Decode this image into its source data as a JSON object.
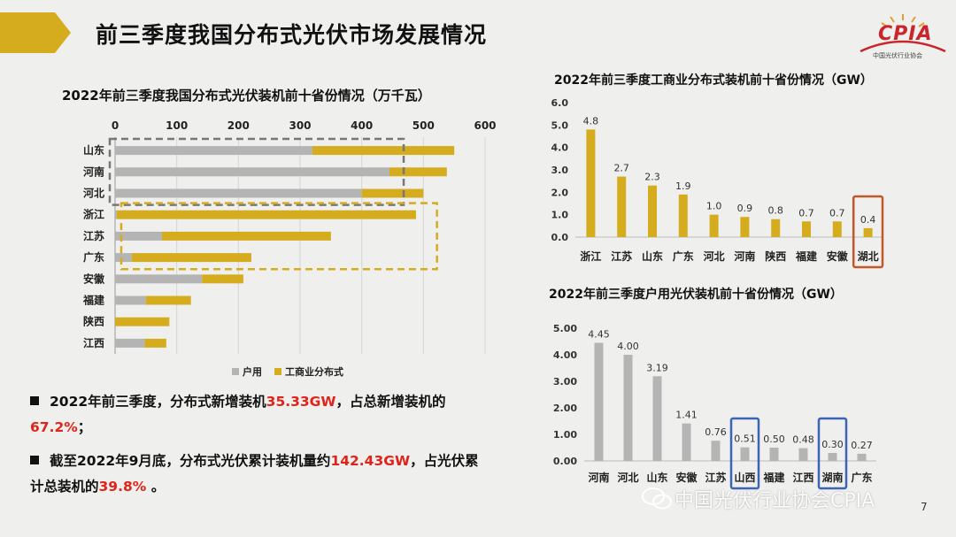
{
  "title": "前三季度我国分布式光伏市场发展情况",
  "logo": {
    "text": "CPIA",
    "subtitle": "中国光伏行业协会"
  },
  "colors": {
    "yellow": "#d6ac1f",
    "gray": "#b4b4b4",
    "red": "#e0241b",
    "blue": "#3a64b4",
    "orange": "#c0582a"
  },
  "chart_data": [
    {
      "type": "bar",
      "orientation": "horizontal",
      "stacked": true,
      "title": "2022年前三季度我国分布式光伏装机前十省份情况（万千瓦）",
      "categories": [
        "山东",
        "河南",
        "河北",
        "浙江",
        "江苏",
        "广东",
        "安徽",
        "福建",
        "陕西",
        "江西"
      ],
      "series": [
        {
          "name": "户用",
          "color": "#b4b4b4",
          "values": [
            320,
            445,
            400,
            3,
            76,
            27,
            141,
            50,
            0,
            48
          ]
        },
        {
          "name": "工商业分布式",
          "color": "#d6ac1f",
          "values": [
            230,
            93,
            100,
            485,
            274,
            194,
            67,
            73,
            88,
            35
          ]
        }
      ],
      "xaxis_ticks": [
        "0",
        "100",
        "200",
        "300",
        "400",
        "500",
        "600"
      ],
      "xlim": [
        0,
        600
      ],
      "legend": "bottom",
      "highlight_groups": [
        [
          "山东",
          "河南",
          "河北"
        ],
        [
          "浙江",
          "江苏",
          "广东"
        ]
      ]
    },
    {
      "type": "bar",
      "title": "2022年前三季度工商业分布式装机前十省份情况（GW）",
      "categories": [
        "浙江",
        "江苏",
        "山东",
        "广东",
        "河北",
        "河南",
        "陕西",
        "福建",
        "安徽",
        "湖北"
      ],
      "values": [
        4.8,
        2.7,
        2.3,
        1.9,
        1.0,
        0.9,
        0.8,
        0.7,
        0.7,
        0.4
      ],
      "value_labels": [
        "4.8",
        "2.7",
        "2.3",
        "1.9",
        "1.0",
        "0.9",
        "0.8",
        "0.7",
        "0.7",
        "0.4"
      ],
      "yaxis_ticks": [
        "0.0",
        "1.0",
        "2.0",
        "3.0",
        "4.0",
        "5.0",
        "6.0"
      ],
      "ylim": [
        0,
        6
      ],
      "color": "#d6ac1f",
      "highlight": [
        "湖北"
      ]
    },
    {
      "type": "bar",
      "title": "2022年前三季度户用光伏装机前十省份情况（GW）",
      "categories": [
        "河南",
        "河北",
        "山东",
        "安徽",
        "江苏",
        "山西",
        "福建",
        "江西",
        "湖南",
        "广东"
      ],
      "values": [
        4.45,
        4.0,
        3.19,
        1.41,
        0.76,
        0.51,
        0.5,
        0.48,
        0.3,
        0.27
      ],
      "value_labels": [
        "4.45",
        "4.00",
        "3.19",
        "1.41",
        "0.76",
        "0.51",
        "0.50",
        "0.48",
        "0.30",
        "0.27"
      ],
      "yaxis_ticks": [
        "0.00",
        "1.00",
        "2.00",
        "3.00",
        "4.00",
        "5.00"
      ],
      "ylim": [
        0,
        5
      ],
      "color": "#b4b4b4",
      "highlight": [
        "山西",
        "湖南"
      ]
    }
  ],
  "bullets": [
    {
      "pre": "2022年前三季度，分布式新增装机",
      "v1": "35.33GW",
      "mid": "，占总新增装机的",
      "v2": "67.2%",
      "post": "；"
    },
    {
      "pre": "截至2022年9月底，分布式光伏累计装机量约",
      "v1": "142.43GW",
      "mid": "，占光伏累计总装机的",
      "v2": "39.8%",
      "post": " 。"
    }
  ],
  "watermark": "中国光伏行业协会CPIA",
  "page_number": "7"
}
